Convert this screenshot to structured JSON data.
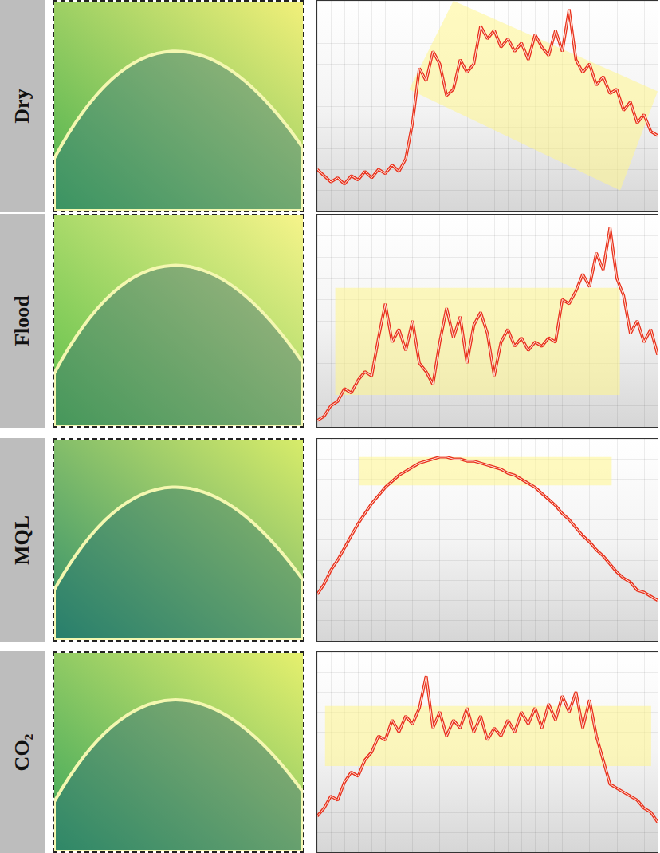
{
  "chart_data": [
    {
      "type": "line",
      "title": "Dry",
      "color": "#e8321e",
      "grid": true,
      "tick_labels": false,
      "xlim": [
        0,
        100
      ],
      "ylim": [
        0,
        100
      ],
      "xticks": [
        0,
        4,
        8,
        12,
        16,
        20,
        24,
        28,
        32,
        36,
        40,
        44,
        48,
        52,
        56,
        60,
        64,
        68,
        72,
        76,
        80,
        84,
        88,
        92,
        96,
        100
      ],
      "yticks": [
        0,
        10,
        20,
        30,
        40,
        50,
        60,
        70,
        80,
        90,
        100
      ],
      "x": [
        0,
        2,
        4,
        6,
        8,
        10,
        12,
        14,
        16,
        18,
        20,
        22,
        24,
        26,
        28,
        30,
        32,
        34,
        36,
        38,
        40,
        42,
        44,
        46,
        48,
        50,
        52,
        54,
        56,
        58,
        60,
        62,
        64,
        66,
        68,
        70,
        72,
        74,
        76,
        78,
        80,
        82,
        84,
        86,
        88,
        90,
        92,
        94,
        96,
        98,
        100
      ],
      "values": [
        20,
        17,
        14,
        16,
        13,
        17,
        15,
        19,
        16,
        20,
        18,
        22,
        19,
        25,
        42,
        68,
        62,
        76,
        70,
        55,
        58,
        72,
        66,
        70,
        88,
        82,
        86,
        78,
        82,
        76,
        80,
        72,
        84,
        78,
        74,
        86,
        76,
        96,
        72,
        66,
        70,
        60,
        64,
        56,
        58,
        48,
        52,
        42,
        46,
        38,
        36
      ],
      "highlight": [
        [
          40,
          100
        ],
        [
          100,
          57
        ],
        [
          89,
          10
        ],
        [
          27,
          58
        ]
      ]
    },
    {
      "type": "line",
      "title": "Flood",
      "color": "#e8321e",
      "grid": true,
      "tick_labels": false,
      "xlim": [
        0,
        100
      ],
      "ylim": [
        0,
        100
      ],
      "xticks": [
        0,
        4,
        8,
        12,
        16,
        20,
        24,
        28,
        32,
        36,
        40,
        44,
        48,
        52,
        56,
        60,
        64,
        68,
        72,
        76,
        80,
        84,
        88,
        92,
        96,
        100
      ],
      "yticks": [
        0,
        10,
        20,
        30,
        40,
        50,
        60,
        70,
        80,
        90,
        100
      ],
      "x": [
        0,
        2,
        4,
        6,
        8,
        10,
        12,
        14,
        16,
        18,
        20,
        22,
        24,
        26,
        28,
        30,
        32,
        34,
        36,
        38,
        40,
        42,
        44,
        46,
        48,
        50,
        52,
        54,
        56,
        58,
        60,
        62,
        64,
        66,
        68,
        70,
        72,
        74,
        76,
        78,
        80,
        82,
        84,
        86,
        88,
        90,
        92,
        94,
        96,
        98,
        100
      ],
      "values": [
        3,
        5,
        10,
        12,
        18,
        16,
        22,
        26,
        24,
        42,
        58,
        40,
        46,
        36,
        50,
        30,
        26,
        20,
        40,
        56,
        42,
        52,
        30,
        48,
        54,
        44,
        24,
        40,
        46,
        38,
        42,
        36,
        40,
        38,
        42,
        40,
        60,
        58,
        64,
        72,
        66,
        82,
        74,
        94,
        70,
        62,
        44,
        50,
        40,
        46,
        34
      ],
      "highlight": [
        [
          5.3,
          65.5
        ],
        [
          88.9,
          65.5
        ],
        [
          88.9,
          15
        ],
        [
          5.3,
          15
        ]
      ]
    },
    {
      "type": "line",
      "title": "MQL",
      "color": "#e8321e",
      "grid": true,
      "tick_labels": false,
      "xlim": [
        0,
        100
      ],
      "ylim": [
        0,
        100
      ],
      "xticks": [
        0,
        4,
        8,
        12,
        16,
        20,
        24,
        28,
        32,
        36,
        40,
        44,
        48,
        52,
        56,
        60,
        64,
        68,
        72,
        76,
        80,
        84,
        88,
        92,
        96,
        100
      ],
      "yticks": [
        0,
        10,
        20,
        30,
        40,
        50,
        60,
        70,
        80,
        90,
        100
      ],
      "x": [
        0,
        2,
        4,
        6,
        8,
        10,
        12,
        14,
        16,
        18,
        20,
        22,
        24,
        26,
        28,
        30,
        32,
        34,
        36,
        38,
        40,
        42,
        44,
        46,
        48,
        50,
        52,
        54,
        56,
        58,
        60,
        62,
        64,
        66,
        68,
        70,
        72,
        74,
        76,
        78,
        80,
        82,
        84,
        86,
        88,
        90,
        92,
        94,
        96,
        98,
        100
      ],
      "values": [
        23,
        28,
        35,
        40,
        46,
        52,
        58,
        63,
        68,
        72,
        76,
        79,
        82,
        84,
        86,
        88,
        89,
        90,
        91,
        91,
        90,
        90,
        89,
        89,
        88,
        87,
        86,
        85,
        83,
        82,
        80,
        78,
        76,
        73,
        70,
        67,
        63,
        60,
        56,
        52,
        49,
        45,
        42,
        38,
        34,
        31,
        29,
        25,
        24,
        22,
        20
      ],
      "highlight": [
        [
          12.3,
          91
        ],
        [
          86.5,
          91
        ],
        [
          86.5,
          77
        ],
        [
          12.3,
          77
        ]
      ]
    },
    {
      "type": "line",
      "title": "CO₂",
      "color": "#e8321e",
      "grid": true,
      "tick_labels": false,
      "xlim": [
        0,
        100
      ],
      "ylim": [
        0,
        100
      ],
      "xticks": [
        0,
        4,
        8,
        12,
        16,
        20,
        24,
        28,
        32,
        36,
        40,
        44,
        48,
        52,
        56,
        60,
        64,
        68,
        72,
        76,
        80,
        84,
        88,
        92,
        96,
        100
      ],
      "yticks": [
        0,
        10,
        20,
        30,
        40,
        50,
        60,
        70,
        80,
        90,
        100
      ],
      "x": [
        0,
        2,
        4,
        6,
        8,
        10,
        12,
        14,
        16,
        18,
        20,
        22,
        24,
        26,
        28,
        30,
        32,
        34,
        36,
        38,
        40,
        42,
        44,
        46,
        48,
        50,
        52,
        54,
        56,
        58,
        60,
        62,
        64,
        66,
        68,
        70,
        72,
        74,
        76,
        78,
        80,
        82,
        84,
        86,
        88,
        90,
        92,
        94,
        96,
        98,
        100
      ],
      "values": [
        18,
        22,
        28,
        26,
        35,
        40,
        38,
        46,
        50,
        58,
        56,
        66,
        60,
        68,
        64,
        72,
        88,
        62,
        70,
        58,
        66,
        62,
        72,
        60,
        68,
        56,
        62,
        58,
        66,
        60,
        70,
        64,
        72,
        62,
        74,
        66,
        78,
        70,
        80,
        62,
        76,
        58,
        46,
        34,
        32,
        30,
        28,
        26,
        22,
        20,
        15
      ],
      "highlight": [
        [
          2.3,
          73
        ],
        [
          98.1,
          73
        ],
        [
          98.1,
          43
        ],
        [
          2.3,
          43
        ]
      ]
    }
  ]
}
